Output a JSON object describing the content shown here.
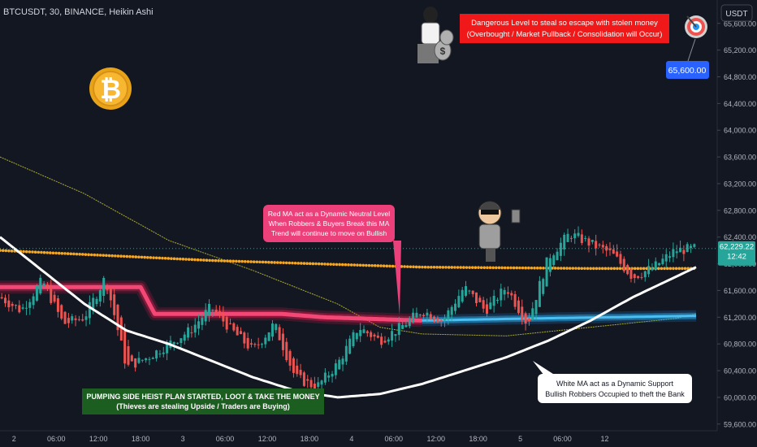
{
  "header": {
    "symbol_title": "BTCUSDT, 30, BINANCE, Heikin Ashi"
  },
  "currency_label": "USDT",
  "colors": {
    "background": "#131722",
    "bull": "#26a69a",
    "bear": "#ef5350",
    "red_ma": "#ff1f5a",
    "blue_ma": "#2196f3",
    "white_ma": "#ffffff",
    "orange_dots": "#f5a623",
    "yellow_ma": "#c8c832"
  },
  "chart_data": {
    "type": "candlestick",
    "y_axis": {
      "ticks": [
        "65,600.00",
        "65,200.00",
        "64,800.00",
        "64,400.00",
        "64,000.00",
        "63,600.00",
        "63,200.00",
        "62,800.00",
        "62,400.00",
        "62,000.00",
        "61,600.00",
        "61,200.00",
        "60,800.00",
        "60,400.00",
        "60,000.00",
        "59,600.00"
      ],
      "tick_values": [
        65600,
        65200,
        64800,
        64400,
        64000,
        63600,
        63200,
        62800,
        62400,
        62000,
        61600,
        61200,
        60800,
        60400,
        60000,
        59600
      ],
      "range": [
        59500,
        65950
      ]
    },
    "x_axis": {
      "ticks": [
        "2",
        "06:00",
        "12:00",
        "18:00",
        "3",
        "06:00",
        "12:00",
        "18:00",
        "4",
        "06:00",
        "12:00",
        "18:00",
        "5",
        "06:00",
        "12"
      ],
      "range_hours": [
        0,
        102
      ]
    },
    "current_price": "62,229.22",
    "countdown": "12:42",
    "target_label": "65,600.00",
    "target_value": 65600,
    "anchors": [
      [
        0,
        61500
      ],
      [
        3,
        61300
      ],
      [
        6,
        61750
      ],
      [
        9,
        61100
      ],
      [
        12,
        61200
      ],
      [
        15,
        61800
      ],
      [
        18,
        60450
      ],
      [
        21,
        60600
      ],
      [
        24,
        60800
      ],
      [
        27,
        61000
      ],
      [
        30,
        61350
      ],
      [
        33,
        61000
      ],
      [
        36,
        60700
      ],
      [
        39,
        61100
      ],
      [
        42,
        60300
      ],
      [
        45,
        60150
      ],
      [
        48,
        60500
      ],
      [
        51,
        61050
      ],
      [
        54,
        60850
      ],
      [
        57,
        61050
      ],
      [
        60,
        61300
      ],
      [
        63,
        61150
      ],
      [
        66,
        61650
      ],
      [
        69,
        61300
      ],
      [
        72,
        61650
      ],
      [
        75,
        61100
      ],
      [
        78,
        62100
      ],
      [
        81,
        62450
      ],
      [
        84,
        62300
      ],
      [
        87,
        62150
      ],
      [
        90,
        61800
      ],
      [
        93,
        61950
      ],
      [
        96,
        62200
      ],
      [
        99,
        62230
      ]
    ],
    "series": [
      {
        "name": "",
        "kind": "white-ma",
        "points": [
          [
            0,
            62400
          ],
          [
            6,
            61900
          ],
          [
            12,
            61400
          ],
          [
            18,
            61000
          ],
          [
            24,
            60800
          ],
          [
            30,
            60550
          ],
          [
            36,
            60300
          ],
          [
            42,
            60100
          ],
          [
            48,
            60000
          ],
          [
            54,
            60050
          ],
          [
            60,
            60200
          ],
          [
            66,
            60400
          ],
          [
            72,
            60600
          ],
          [
            78,
            60850
          ],
          [
            84,
            61150
          ],
          [
            90,
            61500
          ],
          [
            96,
            61800
          ],
          [
            99,
            61950
          ]
        ]
      },
      {
        "name": "",
        "kind": "red-ma",
        "points": [
          [
            0,
            61650
          ],
          [
            20,
            61650
          ],
          [
            22,
            61250
          ],
          [
            40,
            61250
          ],
          [
            46,
            61200
          ],
          [
            60,
            61150
          ]
        ]
      },
      {
        "name": "",
        "kind": "blue-ma",
        "points": [
          [
            60,
            61150
          ],
          [
            75,
            61180
          ],
          [
            99,
            61220
          ]
        ]
      },
      {
        "name": "",
        "kind": "yellow-ma",
        "points": [
          [
            0,
            63600
          ],
          [
            12,
            63050
          ],
          [
            24,
            62350
          ],
          [
            36,
            61900
          ],
          [
            48,
            61400
          ],
          [
            54,
            61050
          ],
          [
            60,
            60950
          ],
          [
            72,
            60920
          ],
          [
            84,
            61050
          ],
          [
            96,
            61180
          ],
          [
            99,
            61250
          ]
        ]
      },
      {
        "name": "",
        "kind": "orange-dots",
        "points": [
          [
            0,
            62200
          ],
          [
            30,
            62050
          ],
          [
            60,
            61950
          ],
          [
            84,
            61930
          ],
          [
            99,
            61930
          ]
        ]
      }
    ]
  },
  "annotations": {
    "danger": {
      "line1": "Dangerous Level to steal so escape with stolen money",
      "line2": "(Overbought / Market Pullback / Consolidation will Occur)"
    },
    "red_ma": {
      "line1": "Red MA act as a Dynamic Neutral Level",
      "line2": "When Robbers & Buyers Break this MA",
      "line3": "Trend will continue to move on Bullish"
    },
    "pumping": {
      "line1": "PUMPING SIDE HEIST PLAN STARTED, LOOT & TAKE THE MONEY",
      "line2": "(Thieves are stealing Upside / Traders are Buying)"
    },
    "white_ma": {
      "line1": "White MA act as a Dynamic Support",
      "line2": "Bullish Robbers Occupied to theft the Bank"
    },
    "bitcoin_symbol": "₿",
    "moneybag_symbol": "$"
  }
}
